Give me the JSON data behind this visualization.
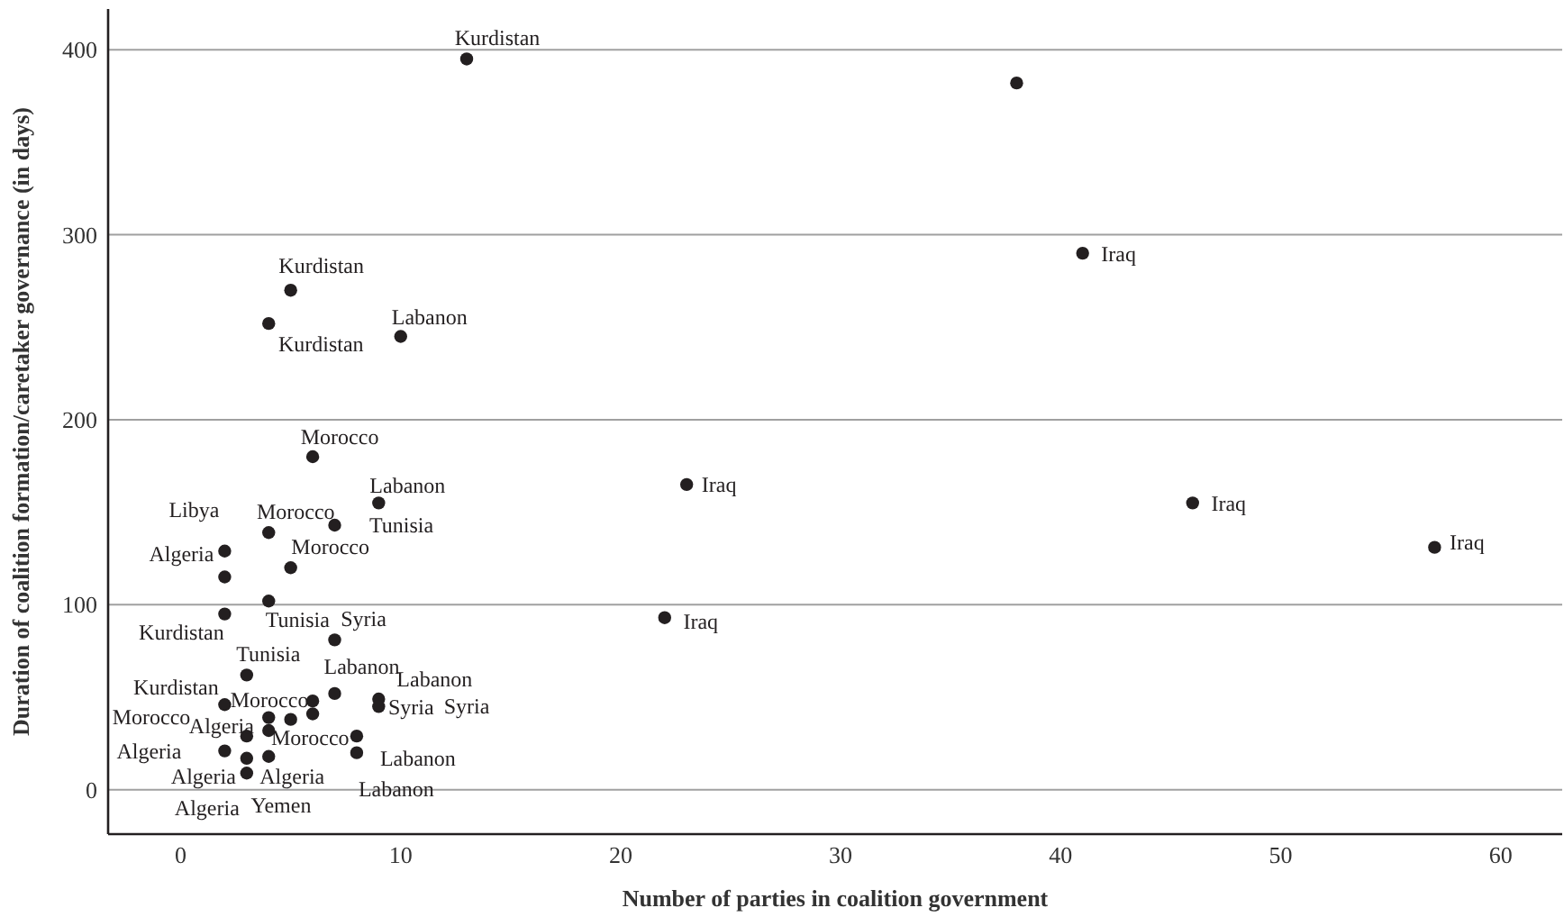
{
  "chart_data": {
    "type": "scatter",
    "xlabel": "Number of parties in coalition government",
    "ylabel": "Duration of coalition formation/caretaker governance (in days)",
    "xlim": [
      -3.3,
      62.8
    ],
    "ylim": [
      -24,
      422
    ],
    "xticks": [
      0,
      10,
      20,
      30,
      40,
      50,
      60
    ],
    "yticks": [
      0,
      100,
      200,
      300,
      400
    ],
    "grid": "y",
    "marker": "circle",
    "series": [
      {
        "color": "#231f20",
        "x": [
          13,
          38,
          41,
          5,
          4,
          10,
          6,
          23,
          9,
          46,
          7,
          4,
          57,
          2,
          5,
          2,
          4,
          2,
          22,
          7,
          3,
          7,
          2,
          6,
          9,
          9,
          4,
          5,
          6,
          4,
          3,
          8,
          2,
          8,
          3,
          4,
          3
        ],
        "values": [
          395,
          382,
          290,
          270,
          252,
          245,
          180,
          165,
          155,
          155,
          143,
          139,
          131,
          129,
          120,
          115,
          102,
          95,
          93,
          81,
          62,
          52,
          46,
          48,
          49,
          45,
          39,
          38,
          41,
          32,
          29,
          29,
          21,
          20,
          17,
          18,
          9
        ]
      }
    ],
    "annotations": [
      {
        "text": "Kurdistan",
        "x": 13,
        "y": 395
      },
      {
        "text": "Iraq",
        "x": 41,
        "y": 290
      },
      {
        "text": "Kurdistan",
        "x": 5,
        "y": 270
      },
      {
        "text": "Kurdistan",
        "x": 4,
        "y": 252
      },
      {
        "text": "Labanon",
        "x": 10,
        "y": 245
      },
      {
        "text": "Morocco",
        "x": 6,
        "y": 180
      },
      {
        "text": "Labanon",
        "x": 9,
        "y": 155
      },
      {
        "text": "Iraq",
        "x": 23,
        "y": 165
      },
      {
        "text": "Libya",
        "x": 2,
        "y": 129
      },
      {
        "text": "Morocco",
        "x": 4,
        "y": 139
      },
      {
        "text": "Tunisia",
        "x": 7,
        "y": 143
      },
      {
        "text": "Iraq",
        "x": 46,
        "y": 155
      },
      {
        "text": "Iraq",
        "x": 57,
        "y": 131
      },
      {
        "text": "Algeria",
        "x": 2,
        "y": 115
      },
      {
        "text": "Morocco",
        "x": 5,
        "y": 120
      },
      {
        "text": "Tunisia",
        "x": 4,
        "y": 102
      },
      {
        "text": "Syria",
        "x": 7,
        "y": 81
      },
      {
        "text": "Kurdistan",
        "x": 2,
        "y": 95
      },
      {
        "text": "Iraq",
        "x": 22,
        "y": 93
      },
      {
        "text": "Tunisia",
        "x": 3,
        "y": 62
      },
      {
        "text": "Labanon",
        "x": 7,
        "y": 52
      },
      {
        "text": "Labanon",
        "x": 9,
        "y": 49
      },
      {
        "text": "Kurdistan",
        "x": 2,
        "y": 46
      },
      {
        "text": "Morocco",
        "x": 6,
        "y": 48
      },
      {
        "text": "Syria",
        "x": 9,
        "y": 45
      },
      "Syria",
      "Morocco",
      {
        "text": "Algeria",
        "x": 3,
        "y": 29
      },
      {
        "text": "Morocco",
        "x": 4,
        "y": 32
      },
      {
        "text": "Algeria",
        "x": 2,
        "y": 21
      },
      {
        "text": "Labanon",
        "x": 8,
        "y": 20
      },
      {
        "text": "Algeria",
        "x": 3,
        "y": 17
      },
      {
        "text": "Algeria",
        "x": 4,
        "y": 18
      },
      {
        "text": "Labanon",
        "x": 8,
        "y": 29
      },
      {
        "text": "Algeria",
        "x": 3,
        "y": 9
      },
      "Yemen"
    ]
  }
}
